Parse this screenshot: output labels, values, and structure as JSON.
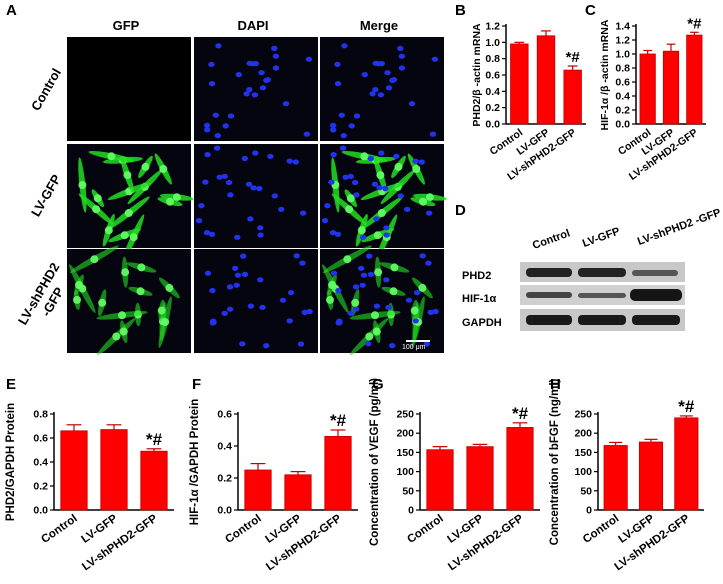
{
  "panel_labels": {
    "a": "A",
    "b": "B",
    "c": "C",
    "d": "D",
    "e": "E",
    "f": "F",
    "g": "G",
    "h": "H"
  },
  "panel_a": {
    "columns": [
      "GFP",
      "DAPI",
      "Merge"
    ],
    "rows": [
      "Control",
      "LV-GFP",
      "LV-shPHD2\n-GFP"
    ],
    "scale_bar": "100 μm"
  },
  "panel_d": {
    "columns": [
      "Control",
      "LV-GFP",
      "LV-shPHD2\n-GFP"
    ],
    "bands": [
      "PHD2",
      "HIF-1α",
      "GAPDH"
    ]
  },
  "colors": {
    "bar": "#ff0000",
    "bar_edge": "#c00000",
    "gfp": "#22dd22",
    "dapi": "#2233ee"
  },
  "chart_data": [
    {
      "panel": "B",
      "type": "bar",
      "categories": [
        "Control",
        "LV-GFP",
        "LV-shPHD2-GFP"
      ],
      "values": [
        0.98,
        1.08,
        0.66
      ],
      "errors": [
        0.02,
        0.06,
        0.05
      ],
      "annotations": [
        "",
        "",
        "*#"
      ],
      "xlabel": "",
      "ylabel": "PHD2/β -actin mRNA",
      "ylim": [
        0,
        1.2
      ],
      "yticks": [
        0.0,
        0.2,
        0.4,
        0.6,
        0.8,
        1.0,
        1.2
      ],
      "tick_labels": [
        "0.0",
        "0.2",
        "0.4",
        "0.6",
        "0.8",
        "1.0",
        "1.2"
      ]
    },
    {
      "panel": "C",
      "type": "bar",
      "categories": [
        "Control",
        "LV-GFP",
        "LV-shPHD2-GFP"
      ],
      "values": [
        1.0,
        1.04,
        1.27
      ],
      "errors": [
        0.05,
        0.1,
        0.04
      ],
      "annotations": [
        "",
        "",
        "*#"
      ],
      "xlabel": "",
      "ylabel": "HIF-1α /β -actin mRNA",
      "ylim": [
        0,
        1.4
      ],
      "yticks": [
        0.0,
        0.2,
        0.4,
        0.6,
        0.8,
        1.0,
        1.2,
        1.4
      ],
      "tick_labels": [
        "0.0",
        "0.2",
        "0.4",
        "0.6",
        "0.8",
        "1.0",
        "1.2",
        "1.4"
      ]
    },
    {
      "panel": "E",
      "type": "bar",
      "categories": [
        "Control",
        "LV-GFP",
        "LV-shPHD2-GFP"
      ],
      "values": [
        0.66,
        0.67,
        0.49
      ],
      "errors": [
        0.05,
        0.04,
        0.02
      ],
      "annotations": [
        "",
        "",
        "*#"
      ],
      "xlabel": "",
      "ylabel": "PHD2/GAPDH Protein",
      "ylim": [
        0,
        0.8
      ],
      "yticks": [
        0.0,
        0.2,
        0.4,
        0.6,
        0.8
      ],
      "tick_labels": [
        "0.0",
        "0.2",
        "0.4",
        "0.6",
        "0.8"
      ]
    },
    {
      "panel": "F",
      "type": "bar",
      "categories": [
        "Control",
        "LV-GFP",
        "LV-shPHD2-GFP"
      ],
      "values": [
        0.25,
        0.22,
        0.46
      ],
      "errors": [
        0.04,
        0.02,
        0.04
      ],
      "annotations": [
        "",
        "",
        "*#"
      ],
      "xlabel": "",
      "ylabel": "HIF-1α /GAPDH Protein",
      "ylim": [
        0,
        0.6
      ],
      "yticks": [
        0.0,
        0.2,
        0.4,
        0.6
      ],
      "tick_labels": [
        "0.0",
        "0.2",
        "0.4",
        "0.6"
      ]
    },
    {
      "panel": "G",
      "type": "bar",
      "categories": [
        "Control",
        "LV-GFP",
        "LV-shPHD2-GFP"
      ],
      "values": [
        157,
        165,
        215
      ],
      "errors": [
        8,
        6,
        12
      ],
      "annotations": [
        "",
        "",
        "*#"
      ],
      "xlabel": "",
      "ylabel": "Concentration of VEGF (pg/ml)",
      "ylim": [
        0,
        250
      ],
      "yticks": [
        0,
        50,
        100,
        150,
        200,
        250
      ],
      "tick_labels": [
        "0",
        "50",
        "100",
        "150",
        "200",
        "250"
      ]
    },
    {
      "panel": "H",
      "type": "bar",
      "categories": [
        "Control",
        "LV-GFP",
        "LV-shPHD2-GFP"
      ],
      "values": [
        168,
        177,
        240
      ],
      "errors": [
        8,
        7,
        5
      ],
      "annotations": [
        "",
        "",
        "*#"
      ],
      "xlabel": "",
      "ylabel": "Concentration of bFGF (ng/ml)",
      "ylim": [
        0,
        250
      ],
      "yticks": [
        0,
        50,
        100,
        150,
        200,
        250
      ],
      "tick_labels": [
        "0",
        "50",
        "100",
        "150",
        "200",
        "250"
      ]
    }
  ]
}
